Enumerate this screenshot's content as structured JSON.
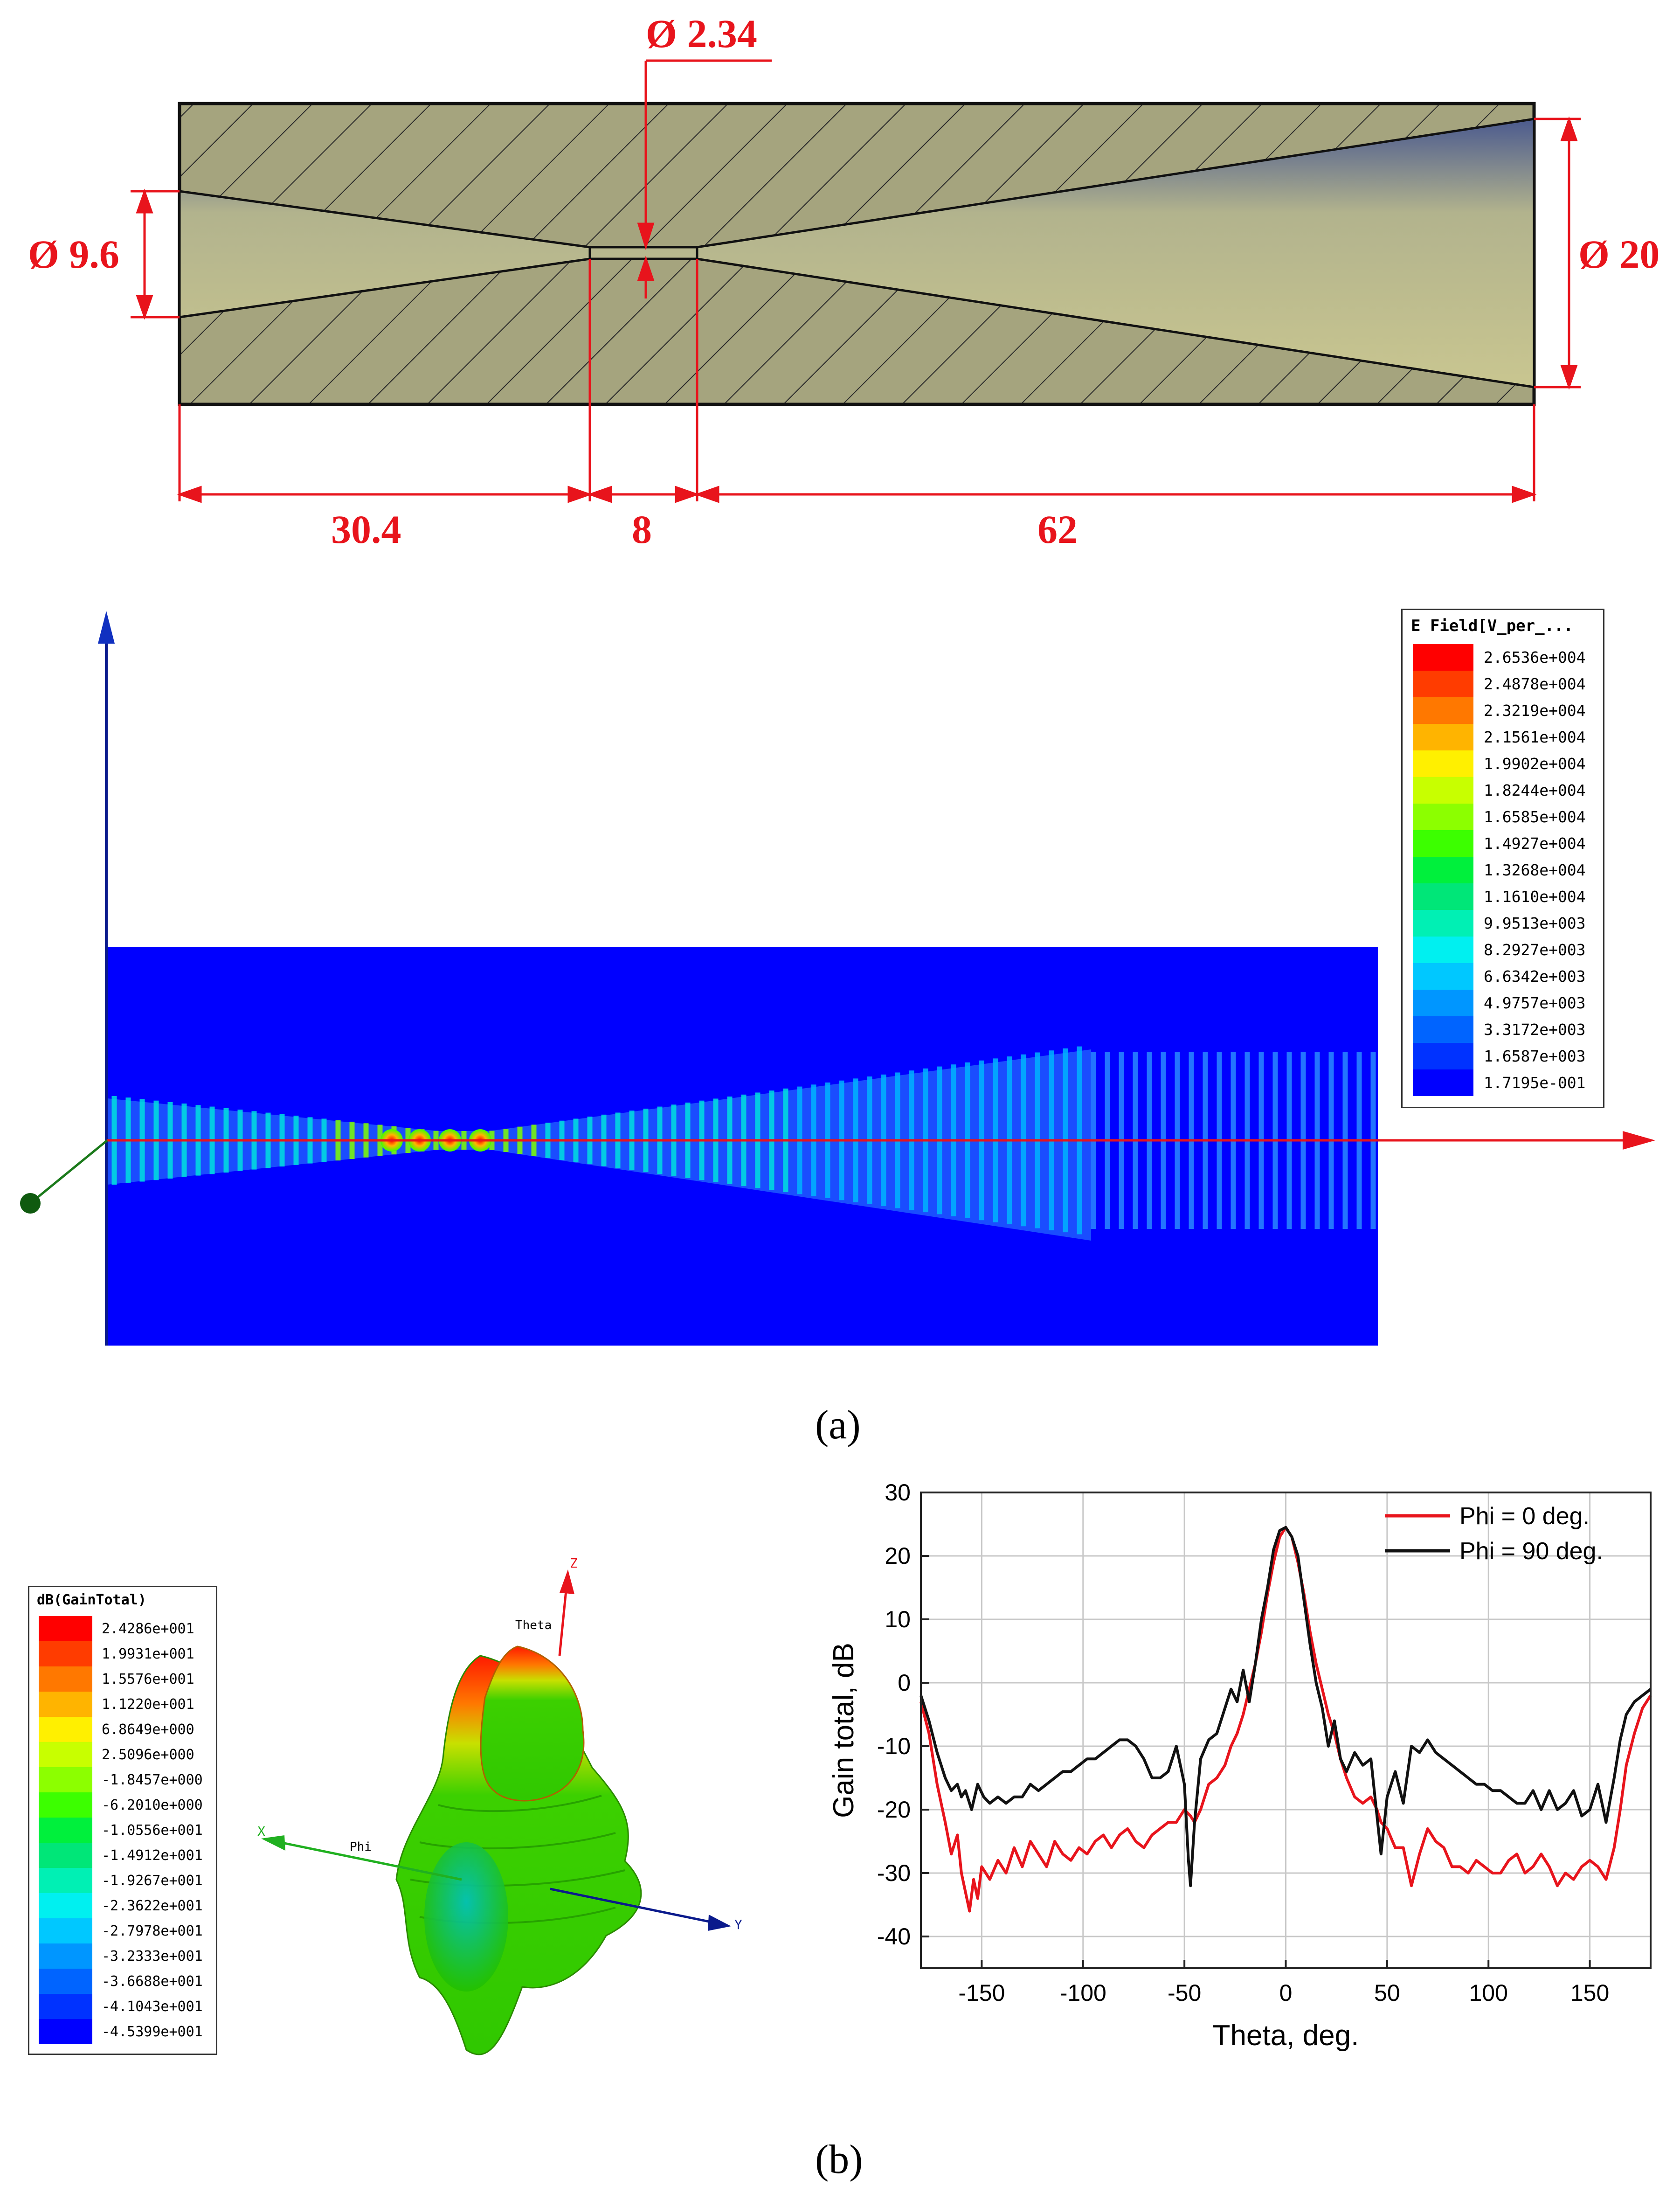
{
  "panel_a": {
    "dimensions": {
      "throat_dia": "Ø 2.34",
      "left_dia": "Ø 9.6",
      "right_dia": "Ø 20",
      "len_left": "30.4",
      "len_throat": "8",
      "len_right": "62"
    },
    "efield_legend": {
      "title": "E Field[V_per_...",
      "values": [
        "2.6536e+004",
        "2.4878e+004",
        "2.3219e+004",
        "2.1561e+004",
        "1.9902e+004",
        "1.8244e+004",
        "1.6585e+004",
        "1.4927e+004",
        "1.3268e+004",
        "1.1610e+004",
        "9.9513e+003",
        "8.2927e+003",
        "6.6342e+003",
        "4.9757e+003",
        "3.3172e+003",
        "1.6587e+003",
        "1.7195e-001"
      ],
      "colors": [
        "#ff0000",
        "#ff3c00",
        "#ff7800",
        "#ffb400",
        "#fff000",
        "#c8ff00",
        "#8cff00",
        "#3cff00",
        "#00f03c",
        "#00e678",
        "#00f0b4",
        "#00f0f0",
        "#00c8ff",
        "#0096ff",
        "#0064ff",
        "#0032ff",
        "#0000ff"
      ]
    },
    "caption": "(a)"
  },
  "panel_b": {
    "gain_legend": {
      "title": "dB(GainTotal)",
      "values": [
        "2.4286e+001",
        "1.9931e+001",
        "1.5576e+001",
        "1.1220e+001",
        "6.8649e+000",
        "2.5096e+000",
        "-1.8457e+000",
        "-6.2010e+000",
        "-1.0556e+001",
        "-1.4912e+001",
        "-1.9267e+001",
        "-2.3622e+001",
        "-2.7978e+001",
        "-3.2333e+001",
        "-3.6688e+001",
        "-4.1043e+001",
        "-4.5399e+001"
      ],
      "colors": [
        "#ff0000",
        "#ff3c00",
        "#ff7800",
        "#ffb400",
        "#fff000",
        "#c8ff00",
        "#8cff00",
        "#3cff00",
        "#00f03c",
        "#00e678",
        "#00f0b4",
        "#00f0f0",
        "#00c8ff",
        "#0096ff",
        "#0064ff",
        "#0032ff",
        "#0000ff"
      ]
    },
    "axes3d": {
      "z": "Z",
      "theta": "Theta",
      "x": "X",
      "phi": "Phi",
      "y": "Y"
    },
    "caption": "(b)"
  },
  "chart_data": {
    "type": "line",
    "title": "",
    "xlabel": "Theta, deg.",
    "ylabel": "Gain total, dB",
    "xlim": [
      -180,
      180
    ],
    "ylim": [
      -45,
      30
    ],
    "xticks": [
      -150,
      -100,
      -50,
      0,
      50,
      100,
      150
    ],
    "yticks": [
      -40,
      -30,
      -20,
      -10,
      0,
      10,
      20,
      30
    ],
    "grid": true,
    "legend_position": "top-right",
    "series": [
      {
        "name": "Phi = 0 deg.",
        "color": "#e8141c",
        "x": [
          -180,
          -176,
          -172,
          -168,
          -165,
          -162,
          -160,
          -158,
          -156,
          -154,
          -152,
          -150,
          -146,
          -142,
          -138,
          -134,
          -130,
          -126,
          -122,
          -118,
          -114,
          -110,
          -106,
          -102,
          -98,
          -94,
          -90,
          -86,
          -82,
          -78,
          -74,
          -70,
          -66,
          -62,
          -58,
          -54,
          -50,
          -47,
          -45,
          -42,
          -38,
          -34,
          -30,
          -27,
          -24,
          -21,
          -18,
          -15,
          -12,
          -9,
          -6,
          -3,
          0,
          3,
          6,
          9,
          12,
          15,
          18,
          21,
          24,
          27,
          30,
          34,
          38,
          42,
          45,
          47,
          50,
          54,
          58,
          62,
          66,
          70,
          74,
          78,
          82,
          86,
          90,
          94,
          98,
          102,
          106,
          110,
          114,
          118,
          122,
          126,
          130,
          134,
          138,
          142,
          146,
          150,
          154,
          158,
          162,
          165,
          168,
          172,
          176,
          180
        ],
        "values": [
          -3,
          -8,
          -16,
          -22,
          -27,
          -24,
          -30,
          -33,
          -36,
          -31,
          -34,
          -29,
          -31,
          -28,
          -30,
          -26,
          -29,
          -25,
          -27,
          -29,
          -25,
          -27,
          -28,
          -26,
          -27,
          -25,
          -24,
          -26,
          -24,
          -23,
          -25,
          -26,
          -24,
          -23,
          -22,
          -22,
          -20,
          -21,
          -22,
          -20,
          -16,
          -15,
          -13,
          -10,
          -8,
          -5,
          -1,
          3,
          8,
          14,
          19,
          23,
          24.5,
          23,
          19,
          14,
          8,
          3,
          -1,
          -5,
          -8,
          -12,
          -15,
          -18,
          -19,
          -18,
          -20,
          -22,
          -23,
          -26,
          -26,
          -32,
          -27,
          -23,
          -25,
          -26,
          -29,
          -29,
          -30,
          -28,
          -29,
          -30,
          -30,
          -28,
          -27,
          -30,
          -29,
          -27,
          -29,
          -32,
          -30,
          -31,
          -29,
          -28,
          -29,
          -31,
          -26,
          -20,
          -13,
          -8,
          -4,
          -2
        ]
      },
      {
        "name": "Phi = 90 deg.",
        "color": "#111111",
        "x": [
          -180,
          -176,
          -172,
          -168,
          -165,
          -162,
          -160,
          -158,
          -155,
          -152,
          -149,
          -146,
          -142,
          -138,
          -134,
          -130,
          -126,
          -122,
          -118,
          -114,
          -110,
          -106,
          -102,
          -98,
          -94,
          -90,
          -86,
          -82,
          -78,
          -74,
          -70,
          -66,
          -62,
          -58,
          -54,
          -50,
          -48,
          -47,
          -45,
          -42,
          -38,
          -34,
          -30,
          -27,
          -24,
          -21,
          -18,
          -15,
          -12,
          -9,
          -6,
          -3,
          0,
          3,
          6,
          9,
          12,
          15,
          18,
          21,
          24,
          27,
          30,
          34,
          38,
          42,
          45,
          47,
          50,
          54,
          58,
          62,
          66,
          70,
          74,
          78,
          82,
          86,
          90,
          94,
          98,
          102,
          106,
          110,
          114,
          118,
          122,
          126,
          130,
          134,
          138,
          142,
          146,
          150,
          154,
          158,
          162,
          165,
          168,
          172,
          176,
          180
        ],
        "values": [
          -2,
          -6,
          -11,
          -15,
          -17,
          -16,
          -18,
          -17,
          -20,
          -16,
          -18,
          -19,
          -18,
          -19,
          -18,
          -18,
          -16,
          -17,
          -16,
          -15,
          -14,
          -14,
          -13,
          -12,
          -12,
          -11,
          -10,
          -9,
          -9,
          -10,
          -12,
          -15,
          -15,
          -14,
          -10,
          -16,
          -28,
          -32,
          -22,
          -12,
          -9,
          -8,
          -4,
          -1,
          -3,
          2,
          -3,
          3,
          10,
          15,
          21,
          24,
          24.5,
          23,
          20,
          13,
          6,
          0,
          -4,
          -10,
          -6,
          -12,
          -14,
          -11,
          -13,
          -12,
          -21,
          -27,
          -18,
          -14,
          -19,
          -10,
          -11,
          -9,
          -11,
          -12,
          -13,
          -14,
          -15,
          -16,
          -16,
          -17,
          -17,
          -18,
          -19,
          -19,
          -17,
          -20,
          -17,
          -20,
          -19,
          -17,
          -21,
          -20,
          -16,
          -22,
          -15,
          -9,
          -5,
          -3,
          -2,
          -1
        ]
      }
    ]
  }
}
